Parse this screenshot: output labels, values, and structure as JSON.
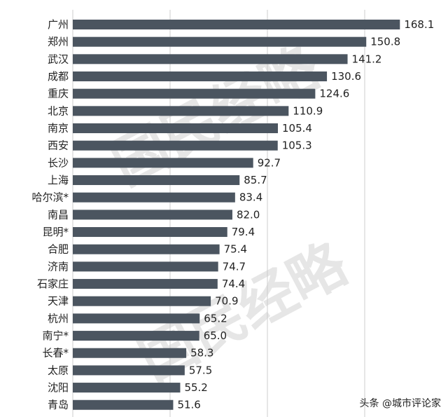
{
  "chart_data": {
    "type": "bar",
    "orientation": "horizontal",
    "categories": [
      "广州",
      "郑州",
      "武汉",
      "成都",
      "重庆",
      "北京",
      "南京",
      "西安",
      "长沙",
      "上海",
      "哈尔滨*",
      "南昌",
      "昆明*",
      "合肥",
      "济南",
      "石家庄",
      "天津",
      "杭州",
      "南宁*",
      "长春*",
      "太原",
      "沈阳",
      "青岛"
    ],
    "values": [
      168.1,
      150.8,
      141.2,
      130.6,
      124.6,
      110.9,
      105.4,
      105.3,
      92.7,
      85.7,
      83.4,
      82.0,
      79.4,
      75.4,
      74.7,
      74.4,
      70.9,
      65.2,
      65.0,
      58.3,
      57.5,
      55.2,
      51.6
    ],
    "value_labels": [
      "168.1",
      "150.8",
      "141.2",
      "130.6",
      "124.6",
      "110.9",
      "105.4",
      "105.3",
      "92.7",
      "85.7",
      "83.4",
      "82.0",
      "79.4",
      "75.4",
      "74.7",
      "74.4",
      "70.9",
      "65.2",
      "65.0",
      "58.3",
      "57.5",
      "55.2",
      "51.6"
    ],
    "xlim": [
      0,
      180
    ],
    "grid": "vertical",
    "legend": "none",
    "title": "",
    "xlabel": "",
    "ylabel": ""
  },
  "watermark": {
    "text": "国民经略"
  },
  "footer": {
    "credit": "头条 @城市评论家"
  },
  "colors": {
    "bar": "#4b5560",
    "grid": "#cccccc",
    "text": "#222222",
    "watermark": "#e6e6e6"
  }
}
